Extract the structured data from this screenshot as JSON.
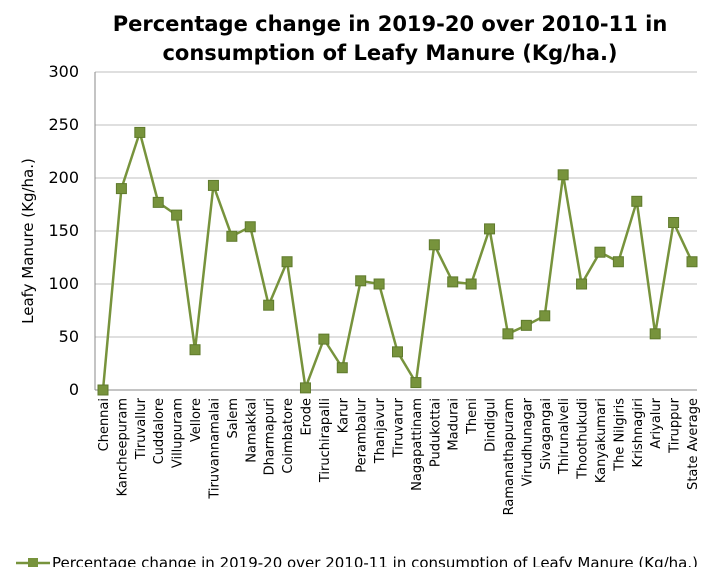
{
  "chart_data": {
    "type": "line",
    "title": "Percentage change in 2019-20 over 2010-11 in\nconsumption of  Leafy Manure (Kg/ha.)",
    "xlabel": "",
    "ylabel": "Leafy  Manure (Kg/ha.)",
    "ylim": [
      0,
      300
    ],
    "yticks": [
      0,
      50,
      100,
      150,
      200,
      250,
      300
    ],
    "grid": "horizontal",
    "legend_position": "bottom",
    "categories": [
      "Chennai",
      "Kancheepuram",
      "Tiruvallur",
      "Cuddalore",
      "Villupuram",
      "Vellore",
      "Tiruvannamalai",
      "Salem",
      "Namakkal",
      "Dharmapuri",
      "Coimbatore",
      "Erode",
      "Tiruchirapalli",
      "Karur",
      "Perambalur",
      "Thanjavur",
      "Tiruvarur",
      "Nagapattinam",
      "Pudukottai",
      "Madurai",
      "Theni",
      "Dindigul",
      "Ramanathapuram",
      "Virudhunagar",
      "Sivagangai",
      "Thirunalveli",
      "Thoothukudi",
      "Kanyakumari",
      "The Nilgiris",
      "Krishnagiri",
      "Ariyalur",
      "Tiruppur",
      "State Average"
    ],
    "series": [
      {
        "name": "Percentage change in 2019-20 over 2010-11 in consumption of  Leafy Manure (Kg/ha.)",
        "color": "#77933c",
        "marker_color": "#77933c",
        "values": [
          0,
          190,
          243,
          177,
          165,
          38,
          193,
          145,
          154,
          80,
          121,
          2,
          48,
          21,
          103,
          100,
          36,
          7,
          137,
          102,
          100,
          152,
          53,
          61,
          70,
          203,
          100,
          130,
          121,
          178,
          53,
          158,
          121
        ]
      }
    ]
  }
}
